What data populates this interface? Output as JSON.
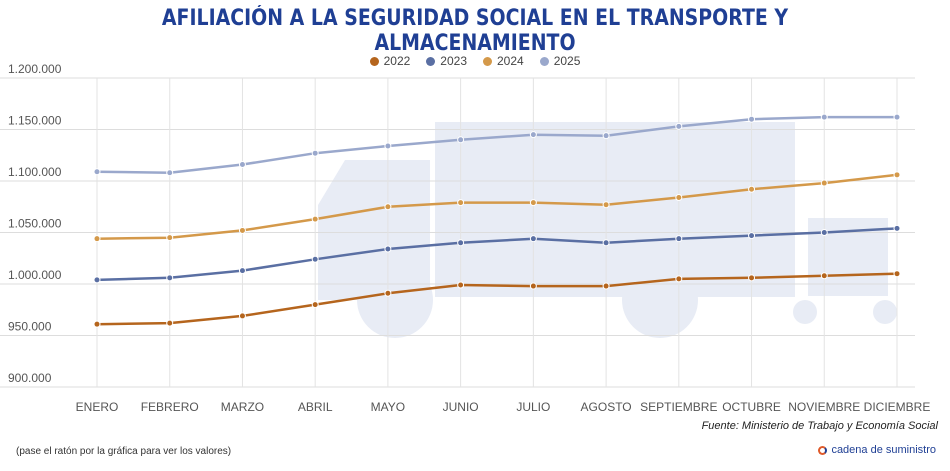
{
  "header": {
    "title": "AFILIACIÓN A LA SEGURIDAD SOCIAL EN EL TRANSPORTE Y ALMACENAMIENTO"
  },
  "footer": {
    "source": "Fuente: Ministerio de Trabajo y Economía Social",
    "hint": "(pase el ratón por la gráfica para ver los valores)",
    "brand": "cadena de suministro"
  },
  "chart_data": {
    "type": "line",
    "title": "AFILIACIÓN A LA SEGURIDAD SOCIAL EN EL TRANSPORTE Y ALMACENAMIENTO",
    "xlabel": "",
    "ylabel": "",
    "ylim": [
      900000,
      1200000
    ],
    "yticks": [
      "1.200.000",
      "1.150.000",
      "1.100.000",
      "1.050.000",
      "1.000.000",
      "950.000",
      "900.000"
    ],
    "ytick_values": [
      1200000,
      1150000,
      1100000,
      1050000,
      1000000,
      950000,
      900000
    ],
    "categories": [
      "ENERO",
      "FEBRERO",
      "MARZO",
      "ABRIL",
      "MAYO",
      "JUNIO",
      "JULIO",
      "AGOSTO",
      "SEPTIEMBRE",
      "OCTUBRE",
      "NOVIEMBRE",
      "DICIEMBRE"
    ],
    "grid": true,
    "legend_position": "top-center",
    "series": [
      {
        "name": "2022",
        "color": "#b5651d",
        "values": [
          961000,
          962000,
          969000,
          980000,
          991000,
          999000,
          998000,
          998000,
          1005000,
          1006000,
          1008000,
          1010000
        ]
      },
      {
        "name": "2023",
        "color": "#5a6fa3",
        "values": [
          1004000,
          1006000,
          1013000,
          1024000,
          1034000,
          1040000,
          1044000,
          1040000,
          1044000,
          1047000,
          1050000,
          1054000
        ]
      },
      {
        "name": "2024",
        "color": "#d4994a",
        "values": [
          1044000,
          1045000,
          1052000,
          1063000,
          1075000,
          1079000,
          1079000,
          1077000,
          1084000,
          1092000,
          1098000,
          1106000
        ]
      },
      {
        "name": "2025",
        "color": "#9aa8cc",
        "values": [
          1109000,
          1108000,
          1116000,
          1127000,
          1134000,
          1140000,
          1145000,
          1144000,
          1153000,
          1160000,
          1162000,
          1162000
        ]
      }
    ]
  }
}
